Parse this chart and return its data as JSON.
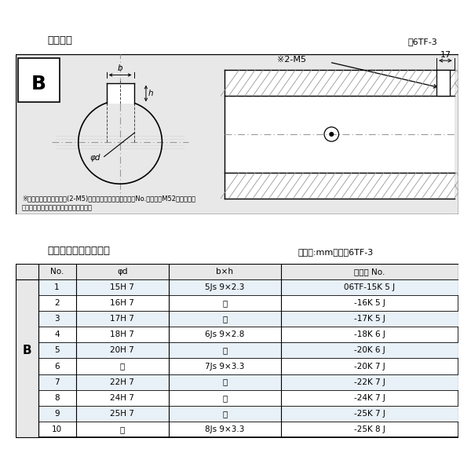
{
  "title_top": "軸穴形状",
  "fig_label_top": "図6TF-3",
  "note1": "※セットボルト用タップ(2-M5)が必要な場合は右記コードNo.の末尾にM52を付ける。",
  "note2": "（セットボルトは付属されています。）",
  "table_title": "軸穴形状コード一覧表",
  "table_unit": "（単位:mm）　表6TF-3",
  "col_headers": [
    "No.",
    "φd",
    "b×h",
    "コード No."
  ],
  "row_label": "B",
  "rows": [
    [
      "1",
      "15H 7",
      "5Js 9×2.3",
      "06TF-15K 5 J"
    ],
    [
      "2",
      "16H 7",
      "〃",
      "-16K 5 J"
    ],
    [
      "3",
      "17H 7",
      "〃",
      "-17K 5 J"
    ],
    [
      "4",
      "18H 7",
      "6Js 9×2.8",
      "-18K 6 J"
    ],
    [
      "5",
      "20H 7",
      "〃",
      "-20K 6 J"
    ],
    [
      "6",
      "〃",
      "7Js 9×3.3",
      "-20K 7 J"
    ],
    [
      "7",
      "22H 7",
      "〃",
      "-22K 7 J"
    ],
    [
      "8",
      "24H 7",
      "〃",
      "-24K 7 J"
    ],
    [
      "9",
      "25H 7",
      "〃",
      "-25K 7 J"
    ],
    [
      "10",
      "〃",
      "8Js 9×3.3",
      "-25K 8 J"
    ]
  ],
  "bg_color": "#e8e8e8",
  "table_row_alt": "#ddeeff",
  "white": "#ffffff",
  "black": "#000000",
  "dark_gray": "#444444",
  "mid_gray": "#999999",
  "border_color": "#aaaaaa"
}
